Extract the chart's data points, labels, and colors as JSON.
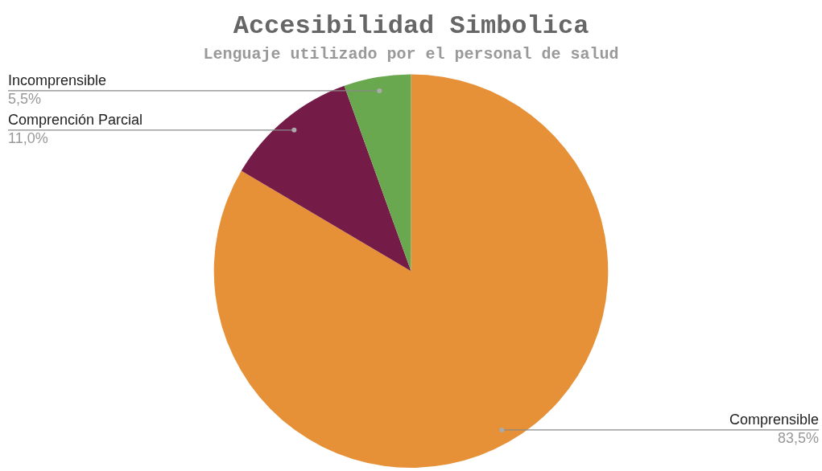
{
  "chart_data": {
    "type": "pie",
    "title": "Accesibilidad Simbolica",
    "subtitle": "Lenguaje utilizado por el personal de salud",
    "categories": [
      "Comprensible",
      "Comprención Parcial",
      "Incomprensible"
    ],
    "values": [
      83.5,
      11.0,
      5.5
    ],
    "colors": [
      "#e69138",
      "#741b47",
      "#6aa84f"
    ],
    "value_labels": [
      "83,5%",
      "11,0%",
      "5,5%"
    ],
    "legend": false
  }
}
